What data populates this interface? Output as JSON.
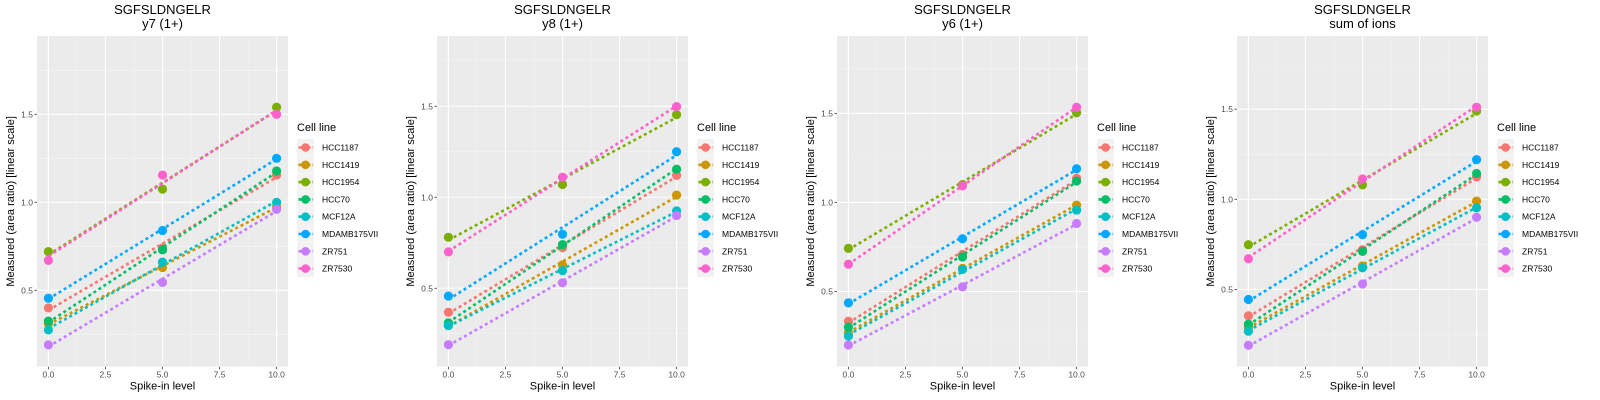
{
  "chart_data": [
    {
      "type": "line",
      "title": "SGFSLDNGELR",
      "subtitle": "y7 (1+)",
      "xlabel": "Spike-in level",
      "ylabel": "Measured (area ratio) [linear scale]",
      "x": [
        0,
        5,
        10
      ],
      "x_ticks": [
        "0.0",
        "2.5",
        "5.0",
        "7.5",
        "10.0"
      ],
      "y_ticks": [
        "0.5",
        "1.0",
        "1.5"
      ],
      "xlim": [
        -0.5,
        10.5
      ],
      "ylim": [
        0.066,
        1.945
      ],
      "grid": true,
      "legend_title": "Cell line",
      "legend_position": "right",
      "series": [
        {
          "name": "HCC1187",
          "color": "#F8766D",
          "values": [
            0.4,
            0.74,
            1.155
          ]
        },
        {
          "name": "HCC1419",
          "color": "#CD9600",
          "values": [
            0.31,
            0.63,
            0.975
          ]
        },
        {
          "name": "HCC1954",
          "color": "#7CAE00",
          "values": [
            0.72,
            1.075,
            1.54
          ]
        },
        {
          "name": "HCC70",
          "color": "#00BE67",
          "values": [
            0.325,
            0.73,
            1.178
          ]
        },
        {
          "name": "MCF12A",
          "color": "#00BFC4",
          "values": [
            0.275,
            0.66,
            1.0
          ]
        },
        {
          "name": "MDAMB175VII",
          "color": "#00A9FF",
          "values": [
            0.455,
            0.84,
            1.25
          ]
        },
        {
          "name": "ZR751",
          "color": "#C77CFF",
          "values": [
            0.19,
            0.545,
            0.96
          ]
        },
        {
          "name": "ZR7530",
          "color": "#FF61CC",
          "values": [
            0.67,
            1.155,
            1.5
          ]
        }
      ]
    },
    {
      "type": "line",
      "title": "SGFSLDNGELR",
      "subtitle": "y8 (1+)",
      "xlabel": "Spike-in level",
      "ylabel": "Measured (area ratio) [linear scale]",
      "x": [
        0,
        5,
        10
      ],
      "x_ticks": [
        "0.0",
        "2.5",
        "5.0",
        "7.5",
        "10.0"
      ],
      "y_ticks": [
        "0.5",
        "1.0",
        "1.5"
      ],
      "xlim": [
        -0.5,
        10.5
      ],
      "ylim": [
        0.069,
        1.886
      ],
      "grid": true,
      "legend_title": "Cell line",
      "legend_position": "right",
      "series": [
        {
          "name": "HCC1187",
          "color": "#F8766D",
          "values": [
            0.368,
            0.723,
            1.12
          ]
        },
        {
          "name": "HCC1419",
          "color": "#CD9600",
          "values": [
            0.3,
            0.628,
            1.012
          ]
        },
        {
          "name": "HCC1954",
          "color": "#7CAE00",
          "values": [
            0.78,
            1.07,
            1.454
          ]
        },
        {
          "name": "HCC70",
          "color": "#00BE67",
          "values": [
            0.31,
            0.74,
            1.154
          ]
        },
        {
          "name": "MCF12A",
          "color": "#00BFC4",
          "values": [
            0.295,
            0.597,
            0.925
          ]
        },
        {
          "name": "MDAMB175VII",
          "color": "#00A9FF",
          "values": [
            0.457,
            0.797,
            1.25
          ]
        },
        {
          "name": "ZR751",
          "color": "#C77CFF",
          "values": [
            0.19,
            0.53,
            0.9
          ]
        },
        {
          "name": "ZR7530",
          "color": "#FF61CC",
          "values": [
            0.7,
            1.11,
            1.498
          ]
        }
      ]
    },
    {
      "type": "line",
      "title": "SGFSLDNGELR",
      "subtitle": "y6 (1+)",
      "xlabel": "Spike-in level",
      "ylabel": "Measured (area ratio) [linear scale]",
      "x": [
        0,
        5,
        10
      ],
      "x_ticks": [
        "0.0",
        "2.5",
        "5.0",
        "7.5",
        "10.0"
      ],
      "y_ticks": [
        "0.5",
        "1.0",
        "1.5"
      ],
      "xlim": [
        -0.5,
        10.5
      ],
      "ylim": [
        0.078,
        1.934
      ],
      "grid": true,
      "legend_title": "Cell line",
      "legend_position": "right",
      "series": [
        {
          "name": "HCC1187",
          "color": "#F8766D",
          "values": [
            0.333,
            0.708,
            1.135
          ]
        },
        {
          "name": "HCC1419",
          "color": "#CD9600",
          "values": [
            0.27,
            0.63,
            0.985
          ]
        },
        {
          "name": "HCC1954",
          "color": "#7CAE00",
          "values": [
            0.742,
            1.1,
            1.503
          ]
        },
        {
          "name": "HCC70",
          "color": "#00BE67",
          "values": [
            0.3,
            0.694,
            1.12
          ]
        },
        {
          "name": "MCF12A",
          "color": "#00BFC4",
          "values": [
            0.25,
            0.624,
            0.957
          ]
        },
        {
          "name": "MDAMB175VII",
          "color": "#00A9FF",
          "values": [
            0.436,
            0.796,
            1.189
          ]
        },
        {
          "name": "ZR751",
          "color": "#C77CFF",
          "values": [
            0.2,
            0.526,
            0.882
          ]
        },
        {
          "name": "ZR7530",
          "color": "#FF61CC",
          "values": [
            0.653,
            1.093,
            1.534
          ]
        }
      ]
    },
    {
      "type": "line",
      "title": "SGFSLDNGELR",
      "subtitle": "sum of ions",
      "xlabel": "Spike-in level",
      "ylabel": "Measured (area ratio) [linear scale]",
      "x": [
        0,
        5,
        10
      ],
      "x_ticks": [
        "0.0",
        "2.5",
        "5.0",
        "7.5",
        "10.0"
      ],
      "y_ticks": [
        "0.5",
        "1.0",
        "1.5"
      ],
      "xlim": [
        -0.5,
        10.5
      ],
      "ylim": [
        0.071,
        1.906
      ],
      "grid": true,
      "legend_title": "Cell line",
      "legend_position": "right",
      "series": [
        {
          "name": "HCC1187",
          "color": "#F8766D",
          "values": [
            0.354,
            0.72,
            1.124
          ]
        },
        {
          "name": "HCC1419",
          "color": "#CD9600",
          "values": [
            0.29,
            0.63,
            0.99
          ]
        },
        {
          "name": "HCC1954",
          "color": "#7CAE00",
          "values": [
            0.748,
            1.08,
            1.49
          ]
        },
        {
          "name": "HCC70",
          "color": "#00BE67",
          "values": [
            0.307,
            0.711,
            1.143
          ]
        },
        {
          "name": "MCF12A",
          "color": "#00BFC4",
          "values": [
            0.268,
            0.62,
            0.952
          ]
        },
        {
          "name": "MDAMB175VII",
          "color": "#00A9FF",
          "values": [
            0.444,
            0.804,
            1.22
          ]
        },
        {
          "name": "ZR751",
          "color": "#C77CFF",
          "values": [
            0.19,
            0.53,
            0.9
          ]
        },
        {
          "name": "ZR7530",
          "color": "#FF61CC",
          "values": [
            0.67,
            1.113,
            1.511
          ]
        }
      ]
    }
  ]
}
